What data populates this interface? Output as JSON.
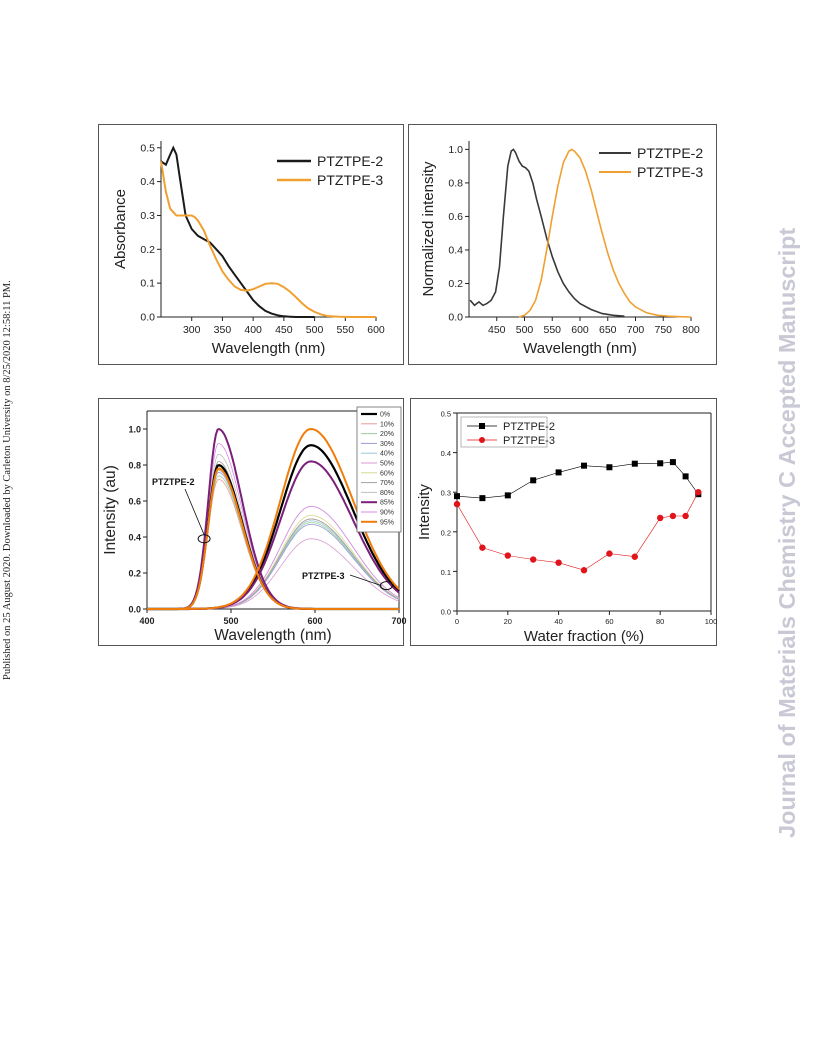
{
  "side_text_left": "Published on 25 August 2020. Downloaded by Carleton University on 8/25/2020 12:58:11 PM.",
  "side_text_right": "Journal of Materials Chemistry C Accepted Manuscript",
  "colors": {
    "black": "#1a1a1a",
    "orange": "#f0a030",
    "red": "#e0141a"
  },
  "chart_data": [
    {
      "type": "line",
      "panel": "absorbance",
      "xlabel": "Wavelength (nm)",
      "ylabel": "Absorbance",
      "xlim": [
        250,
        600
      ],
      "ylim": [
        0,
        0.52
      ],
      "xticks": [
        "300",
        "350",
        "400",
        "450",
        "500",
        "550",
        "600"
      ],
      "yticks": [
        "0.0",
        "0.1",
        "0.2",
        "0.3",
        "0.4",
        "0.5"
      ],
      "legend_position": "top-right",
      "series": [
        {
          "name": "PTZTPE-2",
          "color": "#1a1a1a",
          "x": [
            250,
            258,
            265,
            270,
            275,
            280,
            285,
            290,
            300,
            310,
            320,
            330,
            340,
            350,
            360,
            370,
            380,
            390,
            400,
            410,
            420,
            430,
            440,
            450,
            460,
            470,
            480,
            500
          ],
          "y": [
            0.46,
            0.45,
            0.48,
            0.5,
            0.48,
            0.42,
            0.36,
            0.3,
            0.26,
            0.24,
            0.23,
            0.22,
            0.2,
            0.18,
            0.15,
            0.125,
            0.1,
            0.075,
            0.05,
            0.032,
            0.018,
            0.01,
            0.005,
            0.002,
            0.001,
            0,
            0,
            0
          ]
        },
        {
          "name": "PTZTPE-3",
          "color": "#f0a030",
          "x": [
            250,
            258,
            265,
            275,
            285,
            295,
            300,
            305,
            310,
            320,
            330,
            340,
            350,
            360,
            370,
            380,
            390,
            400,
            410,
            420,
            430,
            440,
            450,
            460,
            470,
            480,
            490,
            500,
            510,
            520,
            540,
            560,
            580,
            600
          ],
          "y": [
            0.46,
            0.37,
            0.32,
            0.3,
            0.3,
            0.3,
            0.3,
            0.295,
            0.285,
            0.255,
            0.21,
            0.17,
            0.135,
            0.11,
            0.09,
            0.08,
            0.078,
            0.082,
            0.09,
            0.098,
            0.1,
            0.098,
            0.088,
            0.075,
            0.058,
            0.04,
            0.025,
            0.015,
            0.008,
            0.003,
            0.001,
            0,
            0,
            0
          ]
        }
      ]
    },
    {
      "type": "line",
      "panel": "normalized-emission",
      "xlabel": "Wavelength (nm)",
      "ylabel": "Normalized intensity",
      "xlim": [
        400,
        800
      ],
      "ylim": [
        0,
        1.05
      ],
      "xticks": [
        "450",
        "500",
        "550",
        "600",
        "650",
        "700",
        "750",
        "800"
      ],
      "yticks": [
        "0.0",
        "0.2",
        "0.4",
        "0.6",
        "0.8",
        "1.0"
      ],
      "legend_position": "top-right",
      "series": [
        {
          "name": "PTZTPE-2",
          "color": "#3a3a3a",
          "x": [
            402,
            410,
            418,
            425,
            432,
            440,
            448,
            455,
            462,
            470,
            476,
            480,
            484,
            490,
            496,
            502,
            508,
            515,
            522,
            530,
            540,
            550,
            560,
            570,
            580,
            590,
            600,
            620,
            640,
            660,
            680
          ],
          "y": [
            0.1,
            0.07,
            0.09,
            0.07,
            0.08,
            0.1,
            0.15,
            0.3,
            0.6,
            0.9,
            0.99,
            1.0,
            0.98,
            0.93,
            0.9,
            0.89,
            0.87,
            0.8,
            0.7,
            0.6,
            0.47,
            0.36,
            0.27,
            0.2,
            0.15,
            0.11,
            0.08,
            0.045,
            0.02,
            0.01,
            0.005
          ]
        },
        {
          "name": "PTZTPE-3",
          "color": "#f0a030",
          "x": [
            490,
            500,
            510,
            520,
            530,
            540,
            550,
            560,
            570,
            580,
            585,
            590,
            600,
            610,
            620,
            630,
            640,
            650,
            660,
            670,
            680,
            690,
            700,
            720,
            740,
            760,
            780,
            800
          ],
          "y": [
            0,
            0.01,
            0.04,
            0.1,
            0.22,
            0.4,
            0.6,
            0.78,
            0.92,
            0.99,
            1.0,
            0.99,
            0.95,
            0.87,
            0.76,
            0.63,
            0.5,
            0.38,
            0.28,
            0.2,
            0.14,
            0.09,
            0.06,
            0.025,
            0.01,
            0.005,
            0.002,
            0
          ]
        }
      ]
    },
    {
      "type": "line",
      "panel": "water-fraction-spectra",
      "xlabel": "Wavelength (nm)",
      "ylabel": "Intensity (au)",
      "xlim": [
        400,
        700
      ],
      "ylim": [
        0,
        1.1
      ],
      "xticks": [
        "400",
        "500",
        "600",
        "700"
      ],
      "yticks": [
        "0.0",
        "0.2",
        "0.4",
        "0.6",
        "0.8",
        "1.0"
      ],
      "annotations": [
        "PTZTPE-2",
        "PTZTPE-3"
      ],
      "legend_position": "top-right",
      "peak1": 485,
      "peak2": 595,
      "series": [
        {
          "name": "0%",
          "color": "#000000",
          "width": 2.2,
          "a": 0.8,
          "b": 0.91
        },
        {
          "name": "10%",
          "color": "#e89a9a",
          "width": 0.8,
          "a": 0.72,
          "b": 0.5
        },
        {
          "name": "20%",
          "color": "#9ad09a",
          "width": 0.8,
          "a": 0.74,
          "b": 0.48
        },
        {
          "name": "30%",
          "color": "#9a9ad8",
          "width": 0.8,
          "a": 0.76,
          "b": 0.47
        },
        {
          "name": "40%",
          "color": "#9ac8d8",
          "width": 0.8,
          "a": 0.77,
          "b": 0.49
        },
        {
          "name": "50%",
          "color": "#d89ad0",
          "width": 0.8,
          "a": 0.78,
          "b": 0.39
        },
        {
          "name": "60%",
          "color": "#d8d890",
          "width": 0.8,
          "a": 0.79,
          "b": 0.52
        },
        {
          "name": "70%",
          "color": "#a0a0a0",
          "width": 0.8,
          "a": 0.82,
          "b": 0.5
        },
        {
          "name": "80%",
          "color": "#c0c0c0",
          "width": 0.8,
          "a": 0.86,
          "b": 0.57
        },
        {
          "name": "85%",
          "color": "#7a1f7a",
          "width": 2.0,
          "a": 1.0,
          "b": 0.82
        },
        {
          "name": "90%",
          "color": "#d88ae8",
          "width": 0.8,
          "a": 0.92,
          "b": 0.57
        },
        {
          "name": "95%",
          "color": "#f07d0a",
          "width": 2.0,
          "a": 0.78,
          "b": 1.0
        }
      ]
    },
    {
      "type": "line",
      "panel": "intensity-vs-water",
      "xlabel": "Water fraction (%)",
      "ylabel": "Intensity",
      "xlim": [
        0,
        100
      ],
      "ylim": [
        0,
        0.5
      ],
      "xticks": [
        "0",
        "20",
        "40",
        "60",
        "80",
        "100"
      ],
      "yticks": [
        "0.0",
        "0.1",
        "0.2",
        "0.3",
        "0.4",
        "0.5"
      ],
      "legend_position": "top-left",
      "series": [
        {
          "name": "PTZTPE-2",
          "color": "#000000",
          "marker": "square",
          "x": [
            0,
            10,
            20,
            30,
            40,
            50,
            60,
            70,
            80,
            85,
            90,
            95
          ],
          "y": [
            0.29,
            0.285,
            0.292,
            0.33,
            0.35,
            0.367,
            0.363,
            0.372,
            0.373,
            0.376,
            0.34,
            0.295
          ]
        },
        {
          "name": "PTZTPE-3",
          "color": "#e0141a",
          "marker": "circle",
          "x": [
            0,
            10,
            20,
            30,
            40,
            50,
            60,
            70,
            80,
            85,
            90,
            95
          ],
          "y": [
            0.27,
            0.16,
            0.14,
            0.13,
            0.122,
            0.103,
            0.145,
            0.137,
            0.235,
            0.24,
            0.24,
            0.3
          ]
        }
      ]
    }
  ]
}
